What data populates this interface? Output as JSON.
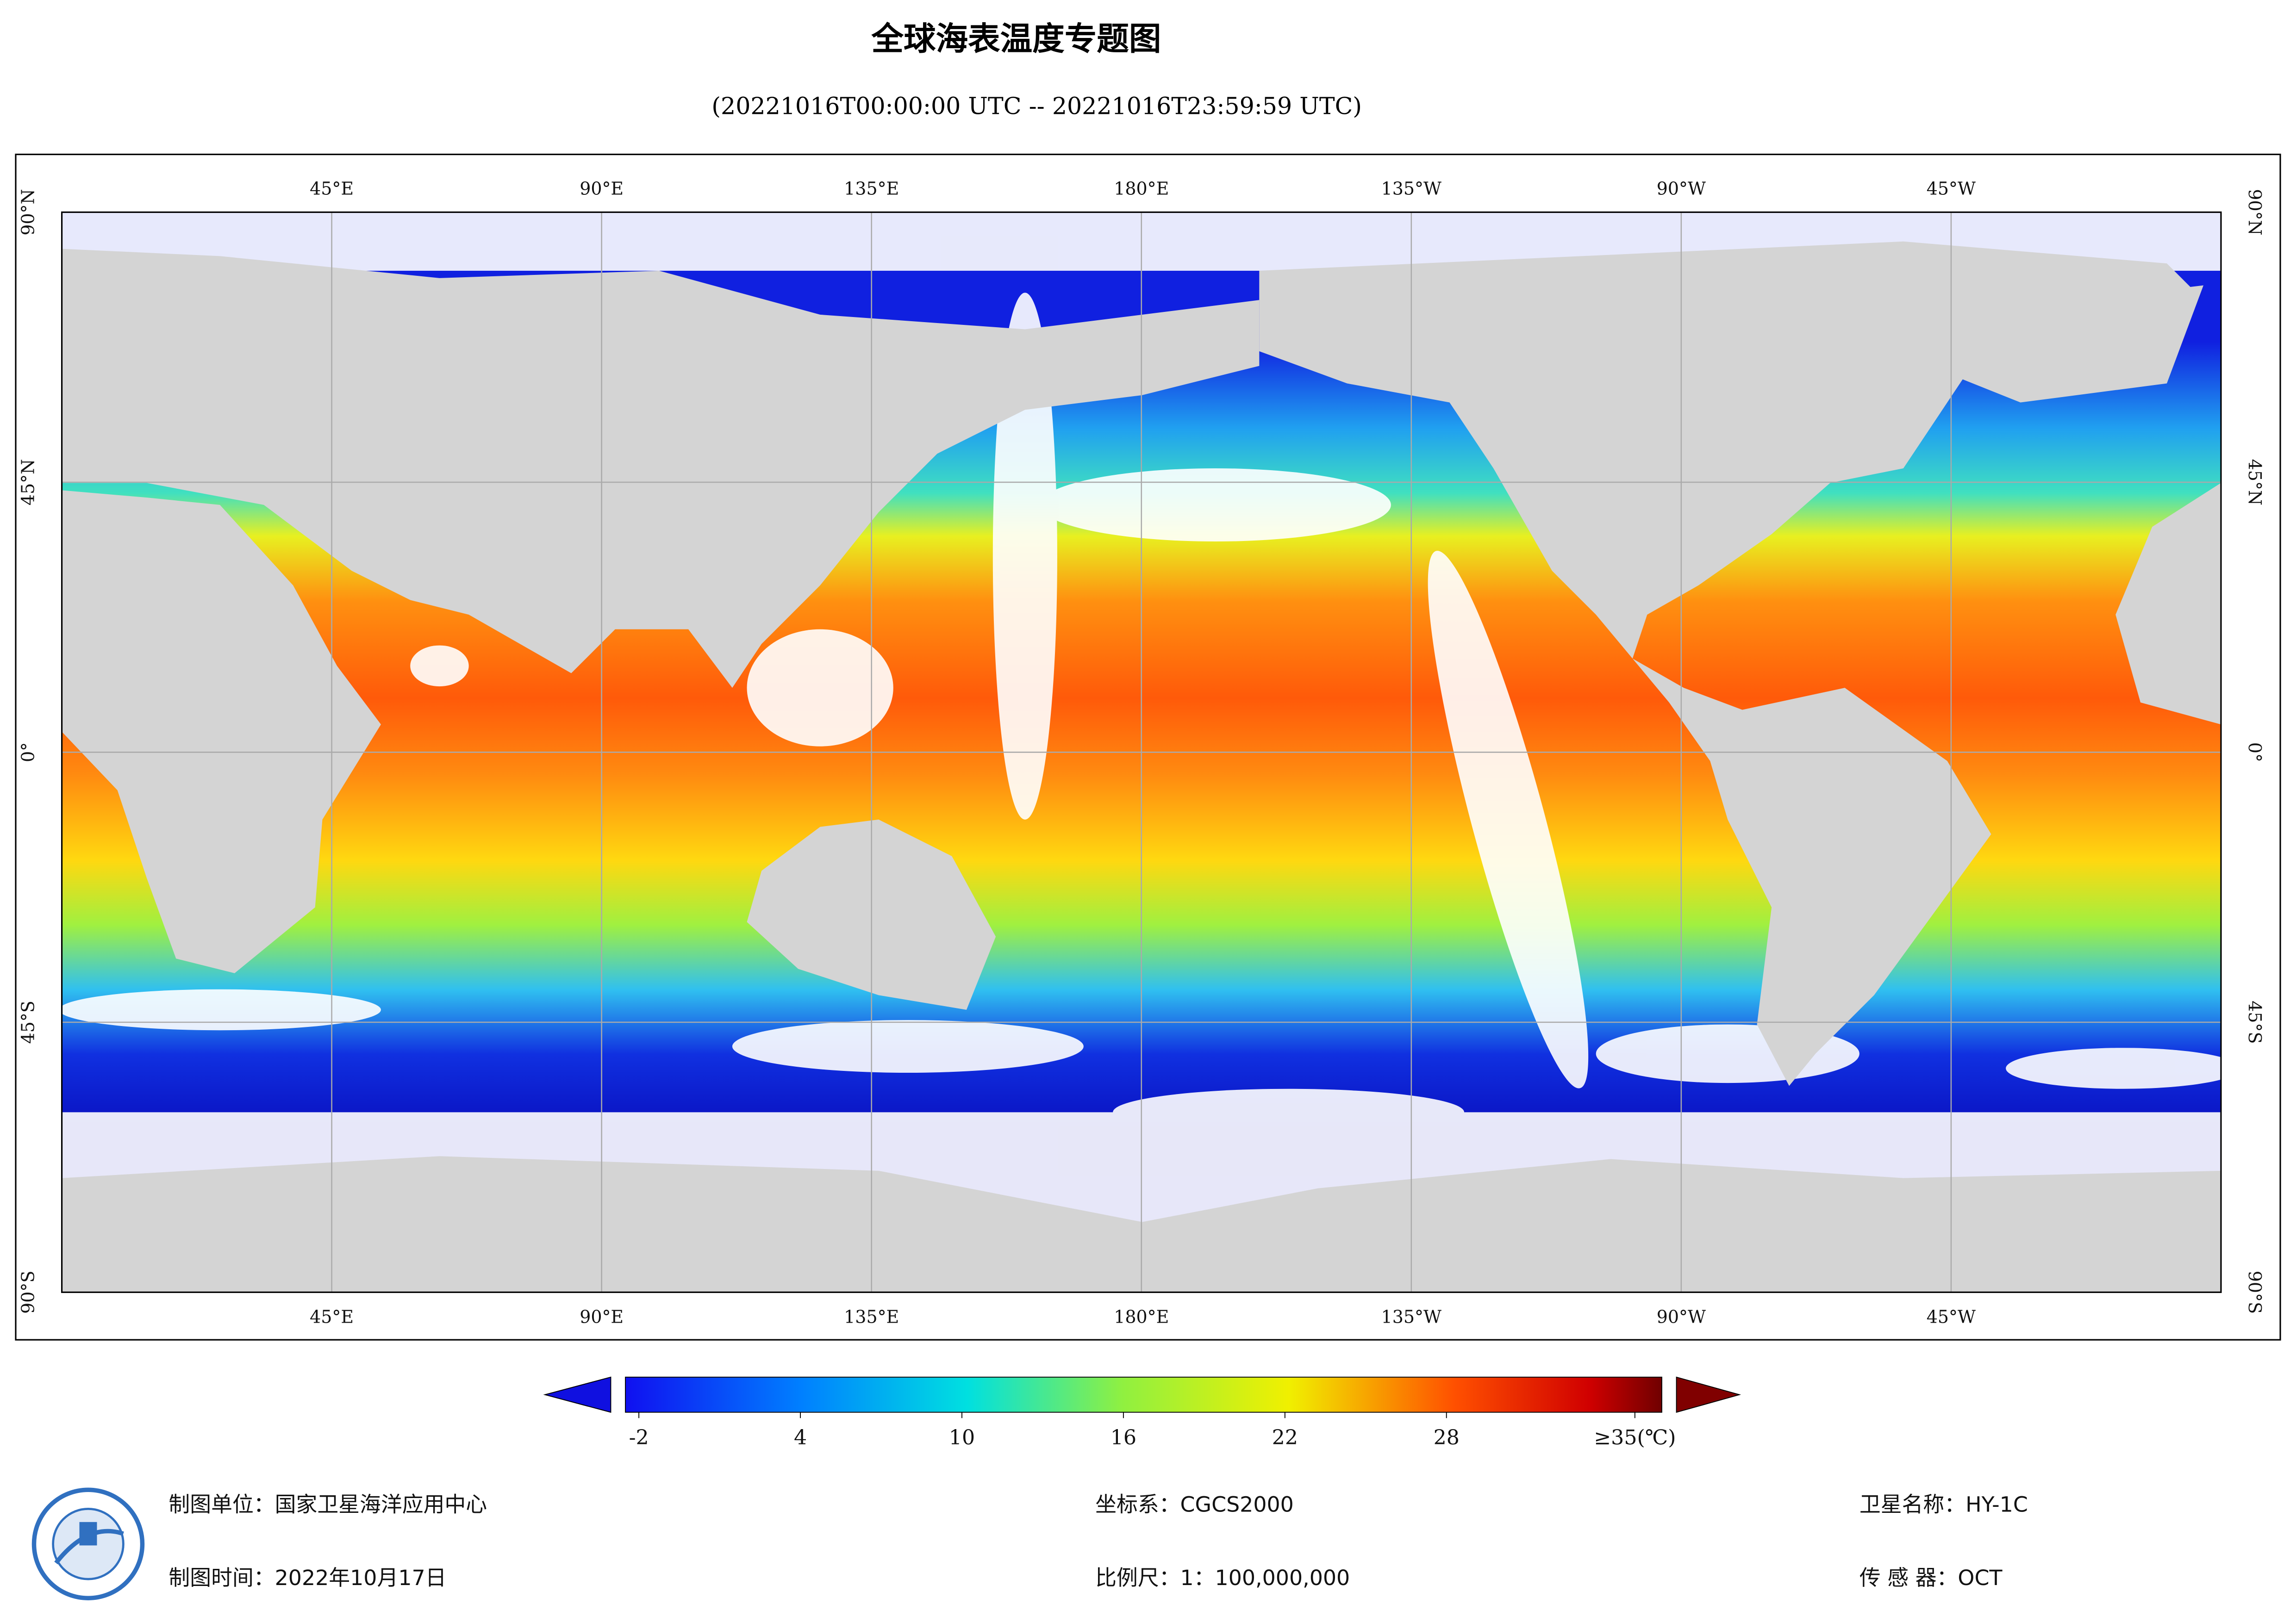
{
  "header": {
    "title": "全球海表温度专题图",
    "subtitle": "(20221016T00:00:00 UTC -- 20221016T23:59:59 UTC)"
  },
  "map": {
    "lon_labels": [
      "45°E",
      "90°E",
      "135°E",
      "180°E",
      "135°W",
      "90°W",
      "45°W"
    ],
    "lat_labels": [
      "90°N",
      "45°N",
      "0°",
      "45°S",
      "90°S"
    ]
  },
  "colorbar": {
    "range": [
      -2.5,
      36
    ],
    "ticks": [
      -2,
      4,
      10,
      16,
      22,
      28,
      {
        "value": 35,
        "label": "≥35(℃)"
      }
    ]
  },
  "footer": {
    "unit": "制图单位：国家卫星海洋应用中心",
    "date": "制图时间：2022年10月17日",
    "crs": "坐标系：CGCS2000",
    "scale": "比例尺：1：100,000,000",
    "satellite": "卫星名称：HY-1C",
    "sensor": "传 感 器：OCT"
  }
}
